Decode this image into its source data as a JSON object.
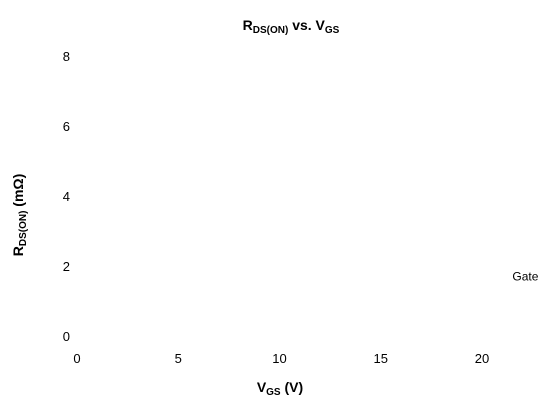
{
  "chart_data": {
    "type": "line",
    "title": {
      "main": "R",
      "main_sub": "DS(ON)",
      "rest": " vs. V",
      "rest_sub": "GS"
    },
    "xlabel": {
      "main": "V",
      "sub": "GS",
      "rest": " (V)"
    },
    "ylabel": {
      "main": "R",
      "sub": "DS(ON)",
      "rest": " (mΩ)"
    },
    "xlim": [
      0,
      20
    ],
    "ylim": [
      0,
      8
    ],
    "x_ticks": [
      "0",
      "5",
      "10",
      "15",
      "20"
    ],
    "y_ticks": [
      "0",
      "2",
      "4",
      "6",
      "8"
    ],
    "grid": false,
    "series": [],
    "annotations": [
      {
        "text": "Gate",
        "x": 21.5,
        "y": 1.7
      }
    ]
  }
}
